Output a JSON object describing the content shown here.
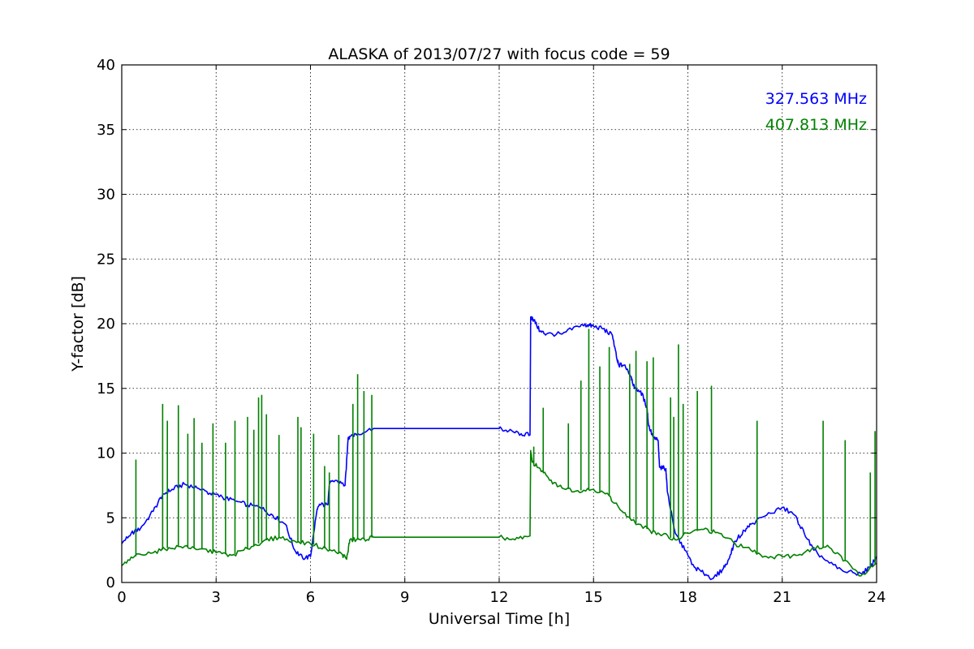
{
  "chart_data": {
    "type": "line",
    "title": "ALASKA of 2013/07/27 with focus code = 59",
    "xlabel": "Universal Time [h]",
    "ylabel": "Y-factor [dB]",
    "xlim": [
      0,
      24
    ],
    "ylim": [
      0,
      40
    ],
    "xticks": [
      0,
      3,
      6,
      9,
      12,
      15,
      18,
      21,
      24
    ],
    "yticks": [
      0,
      5,
      10,
      15,
      20,
      25,
      30,
      35,
      40
    ],
    "grid": true,
    "legend_placement": "top-right",
    "series": [
      {
        "name": "327.563 MHz",
        "color": "#0000ff",
        "x": [
          0,
          0.3,
          0.6,
          1.0,
          1.3,
          1.6,
          2.0,
          2.4,
          2.8,
          3.2,
          3.6,
          4.0,
          4.4,
          4.8,
          5.2,
          5.5,
          5.75,
          6.0,
          6.2,
          6.3,
          6.55,
          6.6,
          6.8,
          7.1,
          7.2,
          7.25,
          7.5,
          8.0,
          12.0,
          12.3,
          12.7,
          12.98,
          13.0,
          13.1,
          13.3,
          13.5,
          14.0,
          14.5,
          14.8,
          15.0,
          15.3,
          15.6,
          15.75,
          15.8,
          16.0,
          16.2,
          16.3,
          16.5,
          16.7,
          16.75,
          16.9,
          17.05,
          17.1,
          17.3,
          17.35,
          17.6,
          17.9,
          18.2,
          18.5,
          18.8,
          19.1,
          19.3,
          19.5,
          19.8,
          20.0,
          20.5,
          21.0,
          21.4,
          21.7,
          22.0,
          22.5,
          23.0,
          23.5,
          23.8,
          24.0
        ],
        "values": [
          3.0,
          3.8,
          4.2,
          5.5,
          6.8,
          7.2,
          7.6,
          7.3,
          6.9,
          6.6,
          6.3,
          6.0,
          5.8,
          5.2,
          4.5,
          2.5,
          1.9,
          2.0,
          5.5,
          6.0,
          6.0,
          7.6,
          7.9,
          7.5,
          11.2,
          11.3,
          11.5,
          11.9,
          11.9,
          11.7,
          11.5,
          11.4,
          20.5,
          20.3,
          19.4,
          19.2,
          19.2,
          19.8,
          19.9,
          19.8,
          19.6,
          19.1,
          17.2,
          16.8,
          16.8,
          15.9,
          15.0,
          14.8,
          13.5,
          12.1,
          11.2,
          11.0,
          8.9,
          8.8,
          7.0,
          3.8,
          2.5,
          1.2,
          0.7,
          0.3,
          1.0,
          1.8,
          3.2,
          4.0,
          4.5,
          5.2,
          5.8,
          5.2,
          3.8,
          2.5,
          1.5,
          0.8,
          0.7,
          1.2,
          2.0
        ]
      },
      {
        "name": "407.813 MHz",
        "color": "#008000",
        "x": [
          0,
          0.4,
          1.0,
          1.5,
          2.0,
          2.5,
          3.0,
          3.5,
          4.0,
          4.5,
          5.0,
          5.5,
          6.0,
          6.5,
          7.0,
          7.15,
          7.25,
          7.6,
          8.0,
          12.0,
          12.5,
          12.98,
          13.0,
          13.05,
          13.3,
          13.6,
          14.0,
          14.5,
          15.0,
          15.5,
          15.8,
          16.2,
          16.8,
          17.2,
          17.6,
          18.0,
          18.5,
          19.0,
          19.5,
          20.0,
          20.5,
          21.0,
          21.5,
          22.0,
          22.5,
          23.0,
          23.5,
          24.0
        ],
        "values": [
          1.3,
          2.0,
          2.3,
          2.7,
          2.8,
          2.6,
          2.3,
          2.1,
          2.6,
          3.2,
          3.5,
          3.2,
          3.0,
          2.6,
          2.2,
          1.8,
          3.3,
          3.3,
          3.5,
          3.5,
          3.3,
          3.6,
          10.2,
          9.3,
          8.8,
          7.9,
          7.3,
          7.1,
          7.2,
          6.7,
          5.8,
          4.8,
          4.0,
          3.7,
          3.3,
          3.8,
          4.1,
          3.8,
          3.0,
          2.5,
          2.0,
          2.0,
          2.1,
          2.7,
          2.7,
          1.7,
          0.5,
          1.5
        ]
      }
    ],
    "spikes": [
      {
        "series": 1,
        "x": [
          0.45,
          1.3,
          1.45,
          1.8,
          2.1,
          2.3,
          2.55,
          2.9,
          3.3,
          3.6,
          4.0,
          4.2,
          4.35,
          4.45,
          4.6,
          5.0,
          5.6,
          5.7,
          6.1,
          6.45,
          6.6,
          6.9,
          7.35,
          7.5,
          7.7,
          7.95,
          13.1,
          13.4,
          14.2,
          14.6,
          14.85,
          15.2,
          15.5,
          16.15,
          16.35,
          16.7,
          16.9,
          17.45,
          17.55,
          17.7,
          17.85,
          18.3,
          18.75,
          20.2,
          22.3,
          23.0,
          23.8,
          23.95
        ],
        "values": [
          9.5,
          13.8,
          12.5,
          13.7,
          11.5,
          12.7,
          10.8,
          12.3,
          10.8,
          12.5,
          12.8,
          11.8,
          14.3,
          14.5,
          13.0,
          11.4,
          12.8,
          12.0,
          11.5,
          9.0,
          8.5,
          11.4,
          13.8,
          16.1,
          14.8,
          14.5,
          10.5,
          13.5,
          12.3,
          15.6,
          19.6,
          16.7,
          18.2,
          16.9,
          17.9,
          17.1,
          17.4,
          14.3,
          12.8,
          18.4,
          13.8,
          14.8,
          15.2,
          12.5,
          12.5,
          11.0,
          8.5,
          11.7
        ]
      }
    ]
  }
}
